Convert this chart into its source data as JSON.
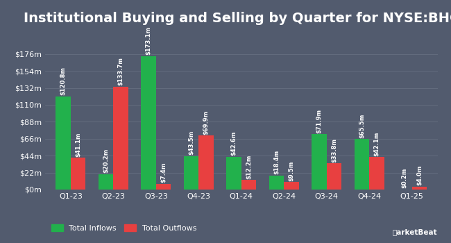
{
  "title": "Institutional Buying and Selling by Quarter for NYSE:BHC",
  "quarters": [
    "Q1-23",
    "Q2-23",
    "Q3-23",
    "Q4-23",
    "Q1-24",
    "Q2-24",
    "Q3-24",
    "Q4-24",
    "Q1-25"
  ],
  "inflows": [
    120.8,
    20.2,
    173.1,
    43.5,
    42.6,
    18.4,
    71.9,
    65.5,
    0.2
  ],
  "outflows": [
    41.1,
    133.7,
    7.4,
    69.9,
    12.2,
    9.5,
    33.8,
    42.1,
    4.0
  ],
  "inflow_labels": [
    "$120.8m",
    "$20.2m",
    "$173.1m",
    "$43.5m",
    "$42.6m",
    "$18.4m",
    "$71.9m",
    "$65.5m",
    "$0.2m"
  ],
  "outflow_labels": [
    "$41.1m",
    "$133.7m",
    "$7.4m",
    "$69.9m",
    "$12.2m",
    "$9.5m",
    "$33.8m",
    "$42.1m",
    "$4.0m"
  ],
  "inflow_color": "#22b14c",
  "outflow_color": "#e84040",
  "bg_color": "#525b6e",
  "plot_bg_color": "#525b6e",
  "text_color": "#ffffff",
  "grid_color": "#666f80",
  "ylim": [
    0,
    205
  ],
  "yticks": [
    0,
    22,
    44,
    66,
    88,
    110,
    132,
    154,
    176
  ],
  "ytick_labels": [
    "$0m",
    "$22m",
    "$44m",
    "$66m",
    "$88m",
    "$110m",
    "$132m",
    "$154m",
    "$176m"
  ],
  "legend_inflow": "Total Inflows",
  "legend_outflow": "Total Outflows",
  "bar_width": 0.35,
  "label_fontsize": 6.0,
  "title_fontsize": 14,
  "tick_fontsize": 8,
  "legend_fontsize": 8
}
